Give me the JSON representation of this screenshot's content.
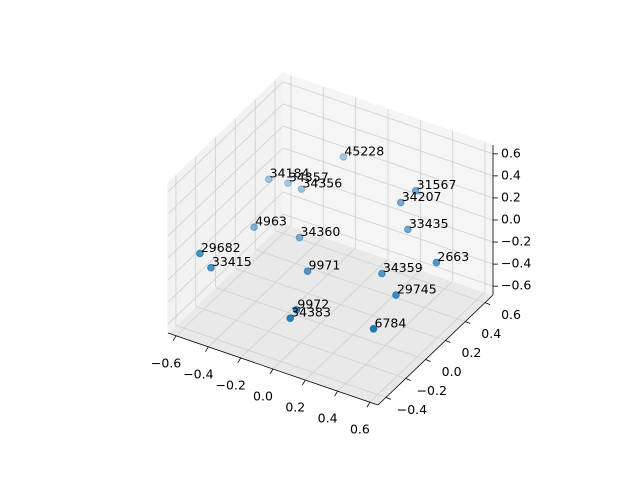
{
  "chart_data": {
    "type": "scatter3d",
    "labels": [
      "45228",
      "34184",
      "34357",
      "34356",
      "31567",
      "34207",
      "33435",
      "2663",
      "4963",
      "34360",
      "29682",
      "33415",
      "9971",
      "34359",
      "29745",
      "9972",
      "34383",
      "6784"
    ],
    "x": [
      -0.19,
      -0.53,
      -0.46,
      -0.37,
      0.3,
      0.22,
      0.27,
      0.49,
      -0.51,
      -0.29,
      -0.6,
      -0.55,
      -0.13,
      0.22,
      0.35,
      -0.07,
      -0.09,
      0.34
    ],
    "y": [
      0.54,
      0.34,
      0.42,
      0.41,
      0.47,
      0.45,
      0.44,
      0.37,
      0.16,
      0.26,
      -0.24,
      -0.21,
      0.08,
      0.26,
      0.19,
      -0.13,
      -0.16,
      -0.02
    ],
    "z": [
      0.27,
      0.07,
      0.0,
      0.0,
      0.27,
      0.14,
      -0.07,
      -0.2,
      -0.2,
      -0.27,
      -0.14,
      -0.27,
      -0.34,
      -0.34,
      -0.41,
      -0.48,
      -0.54,
      -0.54
    ],
    "color": "#1f77b4",
    "xlim": [
      -0.65,
      0.65
    ],
    "ylim": [
      -0.48,
      0.68
    ],
    "zlim": [
      -0.68,
      0.68
    ],
    "xticks": [
      {
        "value": -0.6,
        "label": "−0.6"
      },
      {
        "value": -0.4,
        "label": "−0.4"
      },
      {
        "value": -0.2,
        "label": "−0.2"
      },
      {
        "value": 0.0,
        "label": "0.0"
      },
      0.2,
      0.4,
      0.6
    ],
    "yticks": [
      {
        "value": -0.4,
        "label": "−0.4"
      },
      {
        "value": -0.2,
        "label": "−0.2"
      },
      {
        "value": 0.0,
        "label": "0.0"
      },
      0.2,
      0.4,
      0.6
    ],
    "zticks": [
      {
        "value": -0.6,
        "label": "−0.6"
      },
      {
        "value": -0.4,
        "label": "−0.4"
      },
      {
        "value": -0.2,
        "label": "−0.2"
      },
      {
        "value": 0.0,
        "label": "0.0"
      },
      0.2,
      0.4,
      0.6
    ],
    "grid": true
  }
}
